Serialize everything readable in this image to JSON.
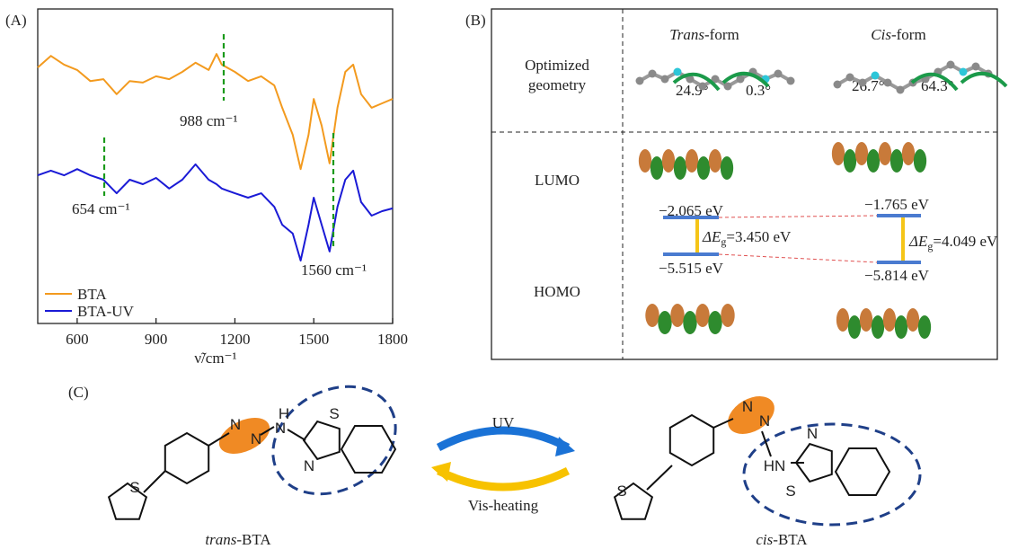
{
  "chart_data": {
    "type": "line",
    "panel_label": "(A)",
    "x_label": "ν̃/cm⁻¹",
    "x": [
      450,
      500,
      550,
      600,
      650,
      700,
      750,
      800,
      850,
      900,
      950,
      1000,
      1050,
      1100,
      1130,
      1150,
      1200,
      1250,
      1300,
      1350,
      1380,
      1420,
      1450,
      1480,
      1500,
      1530,
      1560,
      1590,
      1620,
      1650,
      1680,
      1720,
      1760,
      1800
    ],
    "series": [
      {
        "name": "BTA",
        "color": "#f39a1e",
        "values": [
          81.4,
          85.1,
          82.3,
          80.6,
          77.1,
          77.7,
          72.9,
          77.1,
          76.6,
          78.6,
          77.7,
          80,
          82.9,
          80.6,
          85.7,
          82.3,
          80,
          77.1,
          78.6,
          75.7,
          68.6,
          60,
          49.1,
          60,
          71.4,
          62.9,
          50.9,
          68.6,
          80,
          82.3,
          72.9,
          68.6,
          70,
          71.4
        ]
      },
      {
        "name": "BTA-UV",
        "color": "#1a1ad6",
        "values": [
          47.1,
          48.6,
          47.1,
          49.1,
          47.1,
          45.7,
          41.4,
          45.7,
          44.3,
          46.3,
          42.9,
          45.7,
          50.6,
          45.7,
          44.3,
          42.9,
          41.4,
          40,
          41.4,
          37.1,
          31.4,
          28.6,
          20,
          31.4,
          40,
          31.4,
          22.9,
          37.1,
          45.7,
          48.6,
          38.6,
          34.3,
          35.7,
          36.6
        ]
      }
    ],
    "xlim": [
      450,
      1800
    ],
    "ylim": [
      0,
      100
    ],
    "xticks": [
      600,
      900,
      1200,
      1500,
      1800
    ],
    "legend": "lower left",
    "annotations": [
      "988 cm⁻¹",
      "654 cm⁻¹",
      "1560 cm⁻¹"
    ]
  },
  "panel_b": {
    "label": "(B)",
    "columns": [
      {
        "italic": "Trans",
        "rest": "-form"
      },
      {
        "italic": "Cis",
        "rest": "-form"
      }
    ],
    "rows": [
      "Optimized",
      "geometry",
      "LUMO",
      "HOMO"
    ],
    "angles": [
      "24.9°",
      "0.3°",
      "26.7°",
      "64.3°"
    ],
    "trans": {
      "lumo": "−2.065 eV",
      "homo": "−5.515 eV",
      "gap": [
        "ΔE",
        "g",
        "=3.450 eV"
      ]
    },
    "cis": {
      "lumo": "−1.765 eV",
      "homo": "−5.814 eV",
      "gap": [
        "ΔE",
        "g",
        "=4.049 eV"
      ]
    }
  },
  "panel_c": {
    "label": "(C)",
    "forward": "UV",
    "backward": "Vis-heating",
    "trans": {
      "name": [
        "trans",
        "-BTA"
      ],
      "atoms": [
        "S",
        "N",
        "N",
        "H",
        "N",
        "S",
        "N"
      ]
    },
    "cis": {
      "name": [
        "cis",
        "-BTA"
      ],
      "atoms": [
        "S",
        "N",
        "N",
        "HN",
        "N",
        "S"
      ]
    }
  }
}
